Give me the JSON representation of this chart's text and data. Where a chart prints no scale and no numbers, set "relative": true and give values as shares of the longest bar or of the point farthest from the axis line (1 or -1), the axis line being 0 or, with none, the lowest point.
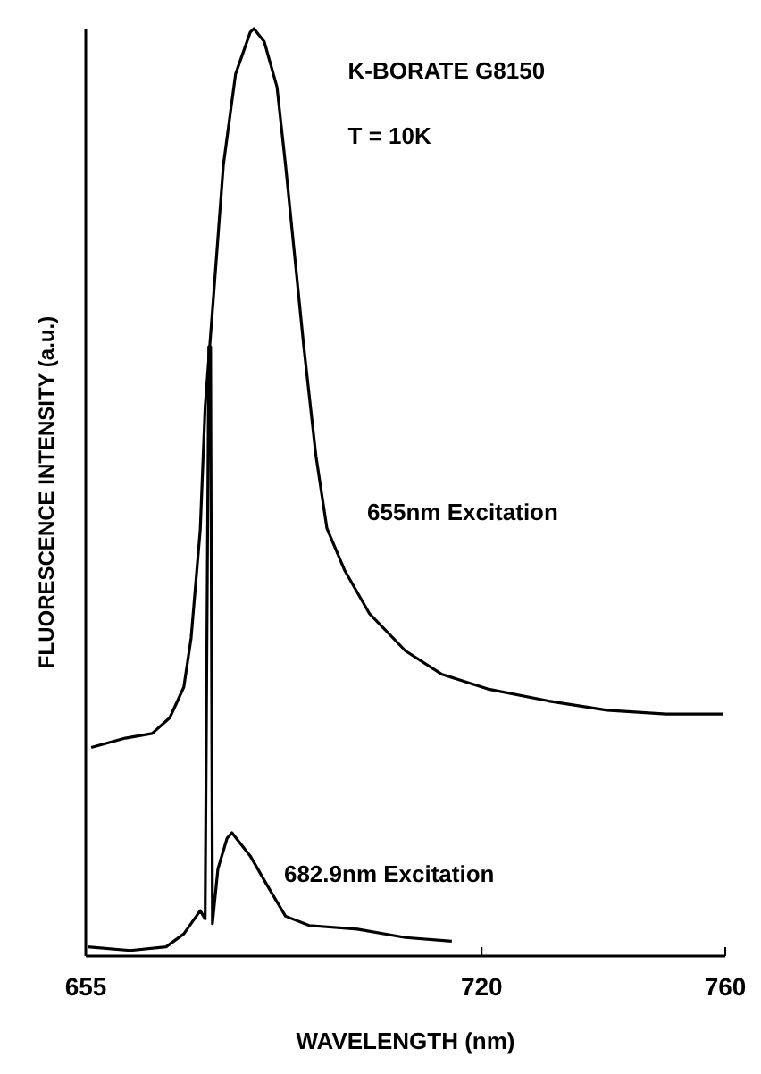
{
  "chart_data": {
    "type": "line",
    "relative": true,
    "xlabel": "WAVELENGTH (nm)",
    "ylabel": "FLUORESCENCE INTENSITY (a.u.)",
    "xlim": [
      655,
      760
    ],
    "xticks": [
      655,
      720,
      760
    ],
    "line_style": "solid",
    "annotations": [
      "K-BORATE G8150",
      "T = 10K"
    ],
    "series": [
      {
        "name": "655nm Excitation",
        "color": "#000000",
        "x": [
          655.9,
          661.5,
          665.9,
          668.8,
          671.1,
          672.3,
          673.8,
          674.6,
          676.1,
          677.6,
          679.6,
          682.0,
          682.6,
          684.3,
          686.4,
          687.8,
          689.3,
          690.8,
          692.8,
          694.6,
          697.5,
          701.6,
          707.5,
          713.4,
          721.0,
          731.0,
          740.6,
          750.3,
          759.7
        ],
        "values": [
          0.225,
          0.235,
          0.24,
          0.257,
          0.29,
          0.343,
          0.46,
          0.592,
          0.722,
          0.853,
          0.951,
          0.996,
          1,
          0.986,
          0.937,
          0.853,
          0.755,
          0.657,
          0.539,
          0.461,
          0.416,
          0.369,
          0.329,
          0.304,
          0.288,
          0.275,
          0.265,
          0.261,
          0.261
        ]
      },
      {
        "name": "682.9nm Excitation",
        "color": "#000000",
        "x": [
          655.3,
          662.3,
          668.2,
          671.1,
          673.8,
          674.6,
          675.2,
          675.5,
          675.8,
          676.7,
          678.2,
          679.0,
          682.0,
          684.9,
          687.8,
          691.7,
          699.6,
          707.5,
          715.1
        ],
        "values": [
          0.01,
          0.006,
          0.01,
          0.024,
          0.049,
          0.04,
          0.657,
          0.657,
          0.035,
          0.094,
          0.127,
          0.133,
          0.108,
          0.075,
          0.043,
          0.033,
          0.029,
          0.02,
          0.016
        ]
      }
    ]
  }
}
